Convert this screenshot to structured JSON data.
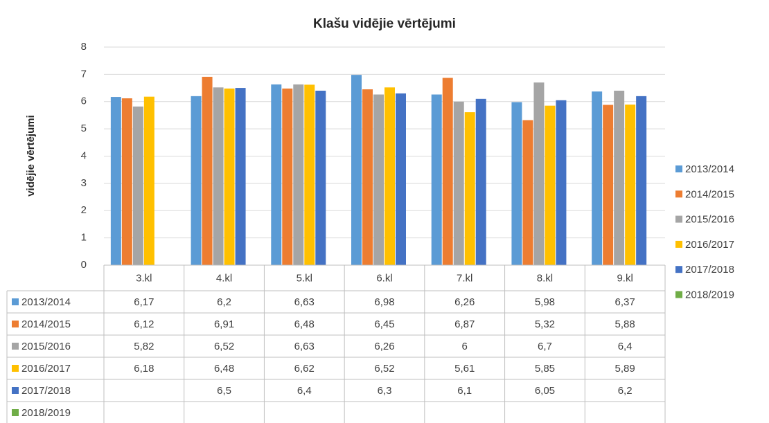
{
  "chart_data": {
    "type": "bar",
    "title": "Klašu vidējie vērtējumi",
    "y_label": "vidējie vērtējumi",
    "categories": [
      "3.kl",
      "4.kl",
      "5.kl",
      "6.kl",
      "7.kl",
      "8.kl",
      "9.kl"
    ],
    "ylim": [
      0,
      8
    ],
    "yticks": [
      0,
      1,
      2,
      3,
      4,
      5,
      6,
      7,
      8
    ],
    "grid": true,
    "legend": "right",
    "data_table": true,
    "series": [
      {
        "name": "2013/2014",
        "color": "#5b9bd5",
        "values": [
          6.17,
          6.2,
          6.63,
          6.98,
          6.26,
          5.98,
          6.37
        ],
        "value_labels": [
          "6,17",
          "6,2",
          "6,63",
          "6,98",
          "6,26",
          "5,98",
          "6,37"
        ]
      },
      {
        "name": "2014/2015",
        "color": "#ed7d31",
        "values": [
          6.12,
          6.91,
          6.48,
          6.45,
          6.87,
          5.32,
          5.88
        ],
        "value_labels": [
          "6,12",
          "6,91",
          "6,48",
          "6,45",
          "6,87",
          "5,32",
          "5,88"
        ]
      },
      {
        "name": "2015/2016",
        "color": "#a5a5a5",
        "values": [
          5.82,
          6.52,
          6.63,
          6.26,
          6,
          6.7,
          6.4
        ],
        "value_labels": [
          "5,82",
          "6,52",
          "6,63",
          "6,26",
          "6",
          "6,7",
          "6,4"
        ]
      },
      {
        "name": "2016/2017",
        "color": "#ffc000",
        "values": [
          6.18,
          6.48,
          6.62,
          6.52,
          5.61,
          5.85,
          5.89
        ],
        "value_labels": [
          "6,18",
          "6,48",
          "6,62",
          "6,52",
          "5,61",
          "5,85",
          "5,89"
        ]
      },
      {
        "name": "2017/2018",
        "color": "#4472c4",
        "values": [
          null,
          6.5,
          6.4,
          6.3,
          6.1,
          6.05,
          6.2
        ],
        "value_labels": [
          null,
          "6,5",
          "6,4",
          "6,3",
          "6,1",
          "6,05",
          "6,2"
        ]
      },
      {
        "name": "2018/2019",
        "color": "#70ad47",
        "values": [
          null,
          null,
          null,
          null,
          null,
          null,
          null
        ],
        "value_labels": [
          null,
          null,
          null,
          null,
          null,
          null,
          null
        ]
      }
    ]
  }
}
